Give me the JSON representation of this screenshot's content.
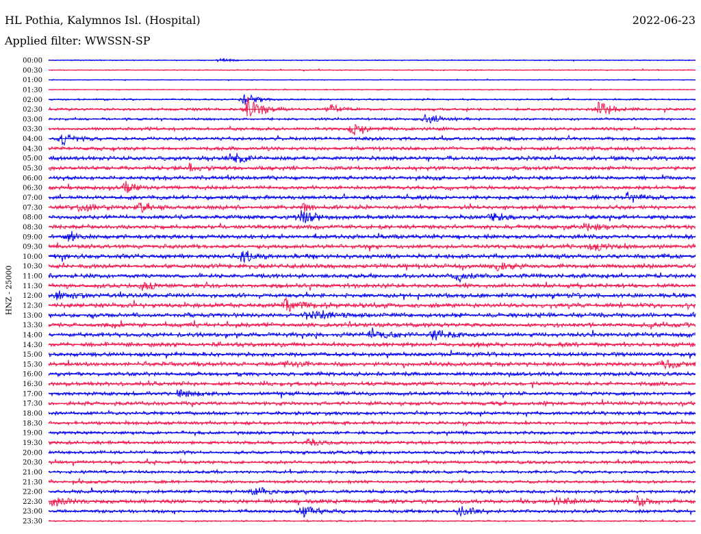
{
  "header": {
    "station": "HL Pothia, Kalymnos Isl. (Hospital)",
    "date": "2022-06-23",
    "filter": "Applied filter: WWSSN-SP",
    "channel": "HNZ - 25000"
  },
  "colors": {
    "trace_a": "#0000ee",
    "trace_b": "#f0144a"
  },
  "chart_data": {
    "type": "line",
    "title": "HL Pothia, Kalymnos Isl. (Hospital)",
    "subtitle": "Applied filter: WWSSN-SP",
    "date": "2022-06-23",
    "ylabel": "HNZ - 25000",
    "row_labels": [
      "00:00",
      "00:30",
      "01:00",
      "01:30",
      "02:00",
      "02:30",
      "03:00",
      "03:30",
      "04:00",
      "04:30",
      "05:00",
      "05:30",
      "06:00",
      "06:30",
      "07:00",
      "07:30",
      "08:00",
      "08:30",
      "09:00",
      "09:30",
      "10:00",
      "10:30",
      "11:00",
      "11:30",
      "12:00",
      "12:30",
      "13:00",
      "13:30",
      "14:00",
      "14:30",
      "15:00",
      "15:30",
      "16:00",
      "16:30",
      "17:00",
      "17:30",
      "18:00",
      "18:30",
      "19:00",
      "19:30",
      "20:00",
      "20:30",
      "21:00",
      "21:30",
      "22:00",
      "22:30",
      "23:00",
      "23:30"
    ],
    "row_colors": [
      "trace_a",
      "trace_b"
    ],
    "noise_level": [
      0.6,
      0.6,
      0.5,
      0.6,
      1.0,
      1.6,
      1.4,
      1.8,
      2.0,
      2.2,
      2.4,
      2.3,
      2.3,
      2.2,
      2.4,
      2.4,
      2.5,
      2.5,
      2.5,
      2.4,
      2.6,
      2.6,
      2.5,
      2.5,
      2.6,
      2.7,
      2.7,
      2.6,
      2.6,
      2.6,
      2.4,
      2.5,
      2.4,
      2.4,
      2.3,
      2.2,
      2.1,
      2.0,
      2.0,
      2.0,
      2.0,
      1.9,
      1.8,
      1.8,
      2.0,
      2.4,
      2.0,
      0.9
    ],
    "events": [
      {
        "row": 0,
        "minute": 8.0,
        "amp": 3
      },
      {
        "row": 4,
        "minute": 9.0,
        "amp": 9
      },
      {
        "row": 5,
        "minute": 9.2,
        "amp": 20
      },
      {
        "row": 5,
        "minute": 13.0,
        "amp": 8
      },
      {
        "row": 5,
        "minute": 25.5,
        "amp": 12
      },
      {
        "row": 6,
        "minute": 17.5,
        "amp": 9
      },
      {
        "row": 7,
        "minute": 14.0,
        "amp": 10
      },
      {
        "row": 8,
        "minute": 0.6,
        "amp": 9
      },
      {
        "row": 10,
        "minute": 8.5,
        "amp": 8
      },
      {
        "row": 11,
        "minute": 6.5,
        "amp": 6
      },
      {
        "row": 13,
        "minute": 3.5,
        "amp": 9
      },
      {
        "row": 14,
        "minute": 26.8,
        "amp": 8
      },
      {
        "row": 15,
        "minute": 1.5,
        "amp": 7
      },
      {
        "row": 15,
        "minute": 4.2,
        "amp": 8
      },
      {
        "row": 15,
        "minute": 11.8,
        "amp": 5
      },
      {
        "row": 16,
        "minute": 11.7,
        "amp": 12
      },
      {
        "row": 16,
        "minute": 20.5,
        "amp": 6
      },
      {
        "row": 17,
        "minute": 25.0,
        "amp": 6
      },
      {
        "row": 18,
        "minute": 0.8,
        "amp": 6
      },
      {
        "row": 19,
        "minute": 25.2,
        "amp": 7
      },
      {
        "row": 20,
        "minute": 8.9,
        "amp": 9
      },
      {
        "row": 21,
        "minute": 20.8,
        "amp": 6
      },
      {
        "row": 22,
        "minute": 18.9,
        "amp": 6
      },
      {
        "row": 23,
        "minute": 4.3,
        "amp": 7
      },
      {
        "row": 24,
        "minute": 0.4,
        "amp": 6
      },
      {
        "row": 25,
        "minute": 11.0,
        "amp": 11
      },
      {
        "row": 26,
        "minute": 12.0,
        "amp": 9
      },
      {
        "row": 28,
        "minute": 15.0,
        "amp": 8
      },
      {
        "row": 28,
        "minute": 17.8,
        "amp": 8
      },
      {
        "row": 31,
        "minute": 11.0,
        "amp": 6
      },
      {
        "row": 31,
        "minute": 28.5,
        "amp": 6
      },
      {
        "row": 34,
        "minute": 6.0,
        "amp": 7
      },
      {
        "row": 39,
        "minute": 12.0,
        "amp": 6
      },
      {
        "row": 44,
        "minute": 9.5,
        "amp": 7
      },
      {
        "row": 45,
        "minute": 0.2,
        "amp": 8
      },
      {
        "row": 45,
        "minute": 23.5,
        "amp": 7
      },
      {
        "row": 45,
        "minute": 27.3,
        "amp": 7
      },
      {
        "row": 46,
        "minute": 11.8,
        "amp": 10
      },
      {
        "row": 46,
        "minute": 19.0,
        "amp": 8
      }
    ]
  }
}
